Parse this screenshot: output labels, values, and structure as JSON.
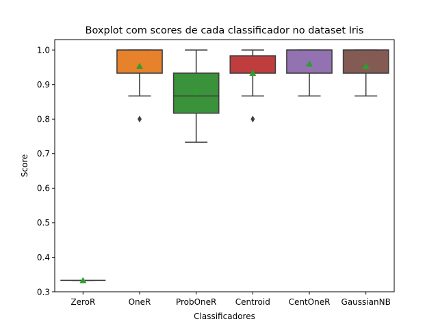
{
  "chart_data": {
    "type": "boxplot",
    "title": "Boxplot com scores de cada classificador no dataset Iris",
    "xlabel": "Classificadores",
    "ylabel": "Score",
    "ylim": [
      0.3,
      1.03
    ],
    "yticks": [
      0.3,
      0.4,
      0.5,
      0.6,
      0.7,
      0.8,
      0.9,
      1.0
    ],
    "ytick_labels": [
      "0.3",
      "0.4",
      "0.5",
      "0.6",
      "0.7",
      "0.8",
      "0.9",
      "1.0"
    ],
    "grid": false,
    "mean_marker": "green-triangle",
    "mean_color": "#2ca02c",
    "categories": [
      "ZeroR",
      "OneR",
      "ProbOneR",
      "Centroid",
      "CentOneR",
      "GaussianNB"
    ],
    "boxes": [
      {
        "category": "ZeroR",
        "whisker_low": 0.333,
        "q1": 0.333,
        "median": 0.333,
        "q3": 0.333,
        "whisker_high": 0.333,
        "mean": 0.333,
        "outliers": [],
        "color": "#1f77b4"
      },
      {
        "category": "OneR",
        "whisker_low": 0.867,
        "q1": 0.933,
        "median": 1.0,
        "q3": 1.0,
        "whisker_high": 1.0,
        "mean": 0.953,
        "outliers": [
          0.8
        ],
        "color": "#e8812b"
      },
      {
        "category": "ProbOneR",
        "whisker_low": 0.733,
        "q1": 0.817,
        "median": 0.867,
        "q3": 0.933,
        "whisker_high": 1.0,
        "mean": 0.88,
        "outliers": [],
        "color": "#3a923a"
      },
      {
        "category": "Centroid",
        "whisker_low": 0.867,
        "q1": 0.933,
        "median": 0.983,
        "q3": 0.983,
        "whisker_high": 1.0,
        "mean": 0.933,
        "outliers": [
          0.8
        ],
        "color": "#c03d3e"
      },
      {
        "category": "CentOneR",
        "whisker_low": 0.867,
        "q1": 0.933,
        "median": 1.0,
        "q3": 1.0,
        "whisker_high": 1.0,
        "mean": 0.96,
        "outliers": [],
        "color": "#9372b2"
      },
      {
        "category": "GaussianNB",
        "whisker_low": 0.867,
        "q1": 0.933,
        "median": 1.0,
        "q3": 1.0,
        "whisker_high": 1.0,
        "mean": 0.953,
        "outliers": [],
        "color": "#845b53"
      }
    ]
  }
}
